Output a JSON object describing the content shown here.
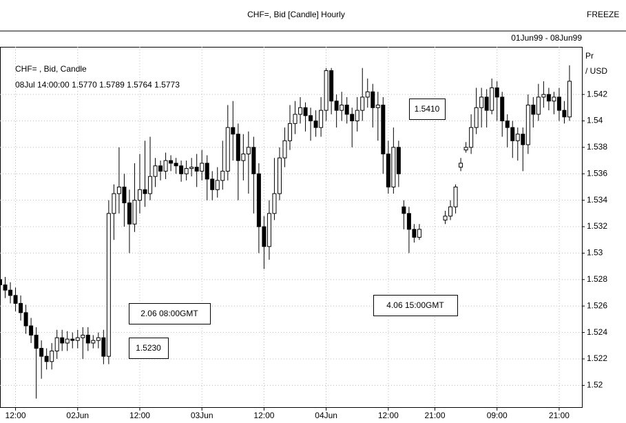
{
  "chart_data": {
    "type": "candlestick",
    "title": "CHF=, Bid [Candle] Hourly",
    "status": "FREEZE",
    "date_range": "01Jun99 - 08Jun99",
    "legend_lines": [
      "CHF= , Bid, Candle",
      "08Jul 14:00:00 1.5770 1.5789 1.5764 1.5773"
    ],
    "y_axis_label": [
      "Pr",
      "/ USD"
    ],
    "annotations": [
      "2.06  08:00GMT",
      "1.5230",
      "4.06  15:00GMT",
      "1.5410"
    ],
    "up_color": "#ffffff",
    "down_color": "#000000",
    "grid": true,
    "ylim": [
      1.5183,
      1.5456
    ],
    "yticks": [
      1.52,
      1.522,
      1.524,
      1.526,
      1.528,
      1.53,
      1.532,
      1.534,
      1.536,
      1.538,
      1.54,
      1.542
    ],
    "xlim": [
      -3,
      109.4
    ],
    "xticks": [
      {
        "value": 0,
        "label": "12:00"
      },
      {
        "value": 12,
        "label": "02Jun"
      },
      {
        "value": 24,
        "label": "12:00"
      },
      {
        "value": 36,
        "label": "03Jun"
      },
      {
        "value": 48,
        "label": "12:00"
      },
      {
        "value": 60,
        "label": "04Jun"
      },
      {
        "value": 72,
        "label": "12:00"
      },
      {
        "value": 81,
        "label": "21:00"
      },
      {
        "value": 93,
        "label": "09:00"
      },
      {
        "value": 105,
        "label": "21:00"
      }
    ],
    "x": [
      -3,
      -2,
      -1,
      0,
      1,
      2,
      3,
      4,
      5,
      6,
      7,
      8,
      9,
      10,
      11,
      12,
      13,
      14,
      15,
      16,
      17,
      18,
      19,
      20,
      21,
      22,
      23,
      24,
      25,
      26,
      27,
      28,
      29,
      30,
      31,
      32,
      33,
      34,
      35,
      36,
      37,
      38,
      39,
      40,
      41,
      42,
      43,
      44,
      45,
      46,
      47,
      48,
      49,
      50,
      51,
      52,
      53,
      54,
      55,
      56,
      57,
      58,
      59,
      60,
      61,
      62,
      63,
      64,
      65,
      66,
      67,
      68,
      69,
      70,
      71,
      72,
      73,
      74,
      75,
      76,
      77,
      78,
      83,
      84,
      85,
      86,
      87,
      88,
      89,
      90,
      91,
      92,
      93,
      94,
      95,
      96,
      97,
      98,
      99,
      100,
      101,
      102,
      103,
      104,
      105,
      106,
      107
    ],
    "open": [
      1.528,
      1.5276,
      1.5272,
      1.5268,
      1.5262,
      1.5255,
      1.5245,
      1.5238,
      1.5228,
      1.5222,
      1.5218,
      1.5226,
      1.5236,
      1.5232,
      1.5235,
      1.5234,
      1.5236,
      1.5238,
      1.5232,
      1.5234,
      1.5236,
      1.5222,
      1.533,
      1.5345,
      1.535,
      1.5338,
      1.5322,
      1.534,
      1.5348,
      1.5345,
      1.5358,
      1.5366,
      1.5362,
      1.537,
      1.5368,
      1.5366,
      1.536,
      1.5364,
      1.5365,
      1.5362,
      1.5368,
      1.5356,
      1.5348,
      1.5355,
      1.5362,
      1.5395,
      1.539,
      1.537,
      1.5375,
      1.538,
      1.536,
      1.532,
      1.5305,
      1.533,
      1.5345,
      1.5372,
      1.5385,
      1.5398,
      1.5405,
      1.541,
      1.5404,
      1.54,
      1.5395,
      1.5408,
      1.5438,
      1.5415,
      1.5408,
      1.5412,
      1.5405,
      1.54,
      1.5408,
      1.5418,
      1.5422,
      1.541,
      1.5412,
      1.5375,
      1.535,
      1.538,
      1.5335,
      1.533,
      1.5318,
      1.5312,
      1.5325,
      1.5328,
      1.5335,
      1.5365,
      1.5378,
      1.538,
      1.5395,
      1.541,
      1.5418,
      1.5408,
      1.5425,
      1.5418,
      1.54,
      1.5395,
      1.5385,
      1.539,
      1.5382,
      1.5412,
      1.5405,
      1.5418,
      1.542,
      1.5415,
      1.5418,
      1.5408,
      1.5403
    ],
    "high": [
      1.5286,
      1.5282,
      1.5278,
      1.5274,
      1.5268,
      1.5261,
      1.5251,
      1.5244,
      1.5234,
      1.5228,
      1.5232,
      1.5242,
      1.5242,
      1.5241,
      1.524,
      1.5242,
      1.5244,
      1.5244,
      1.5238,
      1.524,
      1.5242,
      1.534,
      1.5352,
      1.538,
      1.536,
      1.5348,
      1.5368,
      1.5375,
      1.5385,
      1.5388,
      1.5372,
      1.537,
      1.5376,
      1.5374,
      1.5372,
      1.537,
      1.537,
      1.5372,
      1.5375,
      1.5378,
      1.5374,
      1.5362,
      1.5365,
      1.5385,
      1.5412,
      1.5415,
      1.5398,
      1.539,
      1.5392,
      1.5388,
      1.5368,
      1.5328,
      1.534,
      1.5372,
      1.538,
      1.5395,
      1.5412,
      1.5415,
      1.5418,
      1.5414,
      1.541,
      1.5408,
      1.5418,
      1.544,
      1.544,
      1.542,
      1.5422,
      1.5418,
      1.541,
      1.5418,
      1.544,
      1.5432,
      1.5428,
      1.5422,
      1.5418,
      1.5385,
      1.5395,
      1.5385,
      1.534,
      1.5335,
      1.5322,
      1.5322,
      1.5332,
      1.534,
      1.5352,
      1.5372,
      1.5384,
      1.5405,
      1.5425,
      1.5425,
      1.5424,
      1.5432,
      1.543,
      1.5422,
      1.5405,
      1.54,
      1.5395,
      1.5395,
      1.542,
      1.5418,
      1.5428,
      1.543,
      1.5425,
      1.5422,
      1.5425,
      1.5415,
      1.5442
    ],
    "low": [
      1.527,
      1.5266,
      1.5262,
      1.5256,
      1.5249,
      1.5239,
      1.5232,
      1.519,
      1.5205,
      1.5212,
      1.5212,
      1.522,
      1.5226,
      1.5226,
      1.5228,
      1.5228,
      1.522,
      1.5226,
      1.5228,
      1.5228,
      1.5216,
      1.5216,
      1.531,
      1.533,
      1.532,
      1.53,
      1.5316,
      1.533,
      1.5335,
      1.534,
      1.535,
      1.5355,
      1.5356,
      1.5362,
      1.536,
      1.5354,
      1.5355,
      1.5358,
      1.535,
      1.5355,
      1.534,
      1.534,
      1.5342,
      1.5348,
      1.5355,
      1.537,
      1.534,
      1.5355,
      1.5345,
      1.533,
      1.53,
      1.5288,
      1.5295,
      1.5325,
      1.534,
      1.5365,
      1.5378,
      1.539,
      1.5398,
      1.5392,
      1.5385,
      1.5388,
      1.5388,
      1.54,
      1.5405,
      1.5395,
      1.54,
      1.5398,
      1.538,
      1.5392,
      1.54,
      1.541,
      1.5395,
      1.5385,
      1.536,
      1.5345,
      1.5345,
      1.535,
      1.5318,
      1.53,
      1.5308,
      1.531,
      1.5322,
      1.5325,
      1.533,
      1.5362,
      1.5376,
      1.5375,
      1.539,
      1.5395,
      1.5395,
      1.5405,
      1.54,
      1.5388,
      1.538,
      1.5372,
      1.537,
      1.5362,
      1.5375,
      1.5395,
      1.54,
      1.541,
      1.5408,
      1.5405,
      1.54,
      1.5398,
      1.54
    ],
    "close": [
      1.5276,
      1.5272,
      1.5268,
      1.5262,
      1.5255,
      1.5245,
      1.5238,
      1.5228,
      1.5222,
      1.5218,
      1.5226,
      1.5236,
      1.5232,
      1.5235,
      1.5234,
      1.5236,
      1.5238,
      1.5232,
      1.5234,
      1.5236,
      1.5222,
      1.533,
      1.5345,
      1.535,
      1.5338,
      1.5322,
      1.534,
      1.5348,
      1.5345,
      1.5358,
      1.5366,
      1.5362,
      1.537,
      1.5368,
      1.5366,
      1.536,
      1.5364,
      1.5365,
      1.5362,
      1.5368,
      1.5356,
      1.5348,
      1.5355,
      1.5362,
      1.5395,
      1.539,
      1.537,
      1.5375,
      1.538,
      1.536,
      1.532,
      1.5305,
      1.533,
      1.5345,
      1.5372,
      1.5385,
      1.5398,
      1.5405,
      1.541,
      1.5404,
      1.54,
      1.5395,
      1.5408,
      1.5438,
      1.5415,
      1.5408,
      1.5412,
      1.5405,
      1.54,
      1.5408,
      1.5418,
      1.5422,
      1.541,
      1.5412,
      1.5375,
      1.535,
      1.538,
      1.536,
      1.533,
      1.5318,
      1.5312,
      1.5318,
      1.5328,
      1.5335,
      1.535,
      1.5368,
      1.538,
      1.5395,
      1.541,
      1.5418,
      1.5408,
      1.5425,
      1.5418,
      1.54,
      1.5395,
      1.5385,
      1.539,
      1.5382,
      1.5412,
      1.5405,
      1.5418,
      1.542,
      1.5415,
      1.5418,
      1.5408,
      1.5403,
      1.543
    ]
  }
}
